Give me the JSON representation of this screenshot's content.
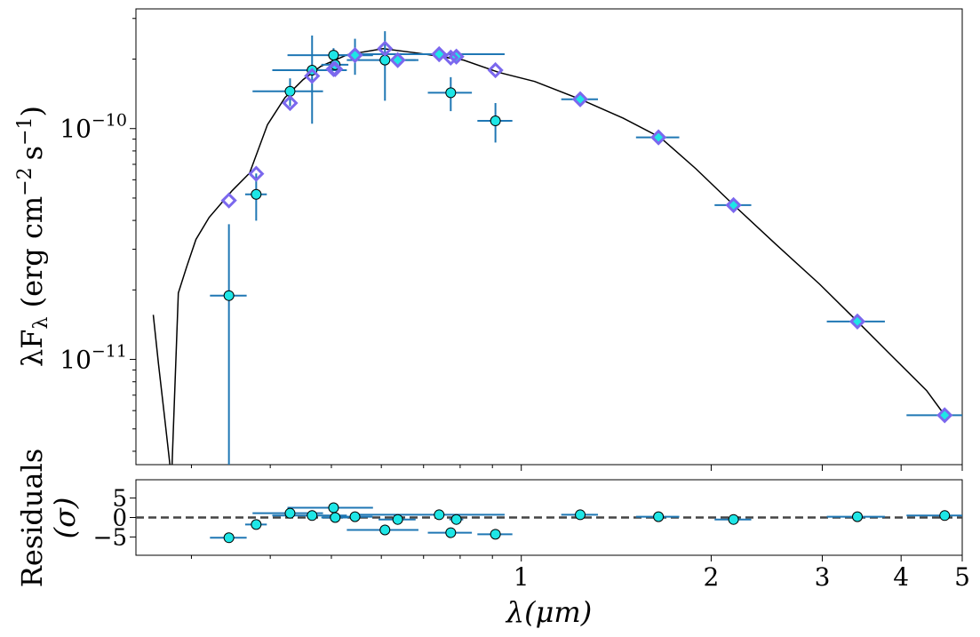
{
  "chart_data": [
    {
      "type": "sed",
      "ylabel": [
        "λF",
        "λ",
        " (erg cm",
        "−2",
        "s",
        "−1",
        ")"
      ],
      "xlim": [
        0.245,
        5
      ],
      "log_x": true,
      "ylim": [
        3.5e-12,
        3.3e-10
      ],
      "log_y": true,
      "yticks": [
        {
          "value": 1e-10,
          "base": "10",
          "exponent": "−10"
        },
        {
          "value": 1e-11,
          "base": "10",
          "exponent": "−11"
        }
      ],
      "yminorticks": [
        4e-12,
        5e-12,
        6e-12,
        7e-12,
        8e-12,
        9e-12,
        2e-11,
        3e-11,
        4e-11,
        5e-11,
        6e-11,
        7e-11,
        8e-11,
        9e-11,
        2e-10,
        3e-10
      ],
      "xminorticks": [
        0.3,
        0.4,
        0.5,
        0.6,
        0.7,
        0.8,
        0.9
      ],
      "xticks": [
        1,
        2,
        3,
        4,
        5
      ],
      "model_spectrum": {
        "color": "#000000",
        "x": [
          0.261,
          0.266,
          0.272,
          0.279,
          0.286,
          0.295,
          0.305,
          0.32,
          0.348,
          0.371,
          0.396,
          0.422,
          0.451,
          0.481,
          0.53,
          0.604,
          0.688,
          0.81,
          0.922,
          1.05,
          1.24,
          1.45,
          1.66,
          1.89,
          2.17,
          2.53,
          2.97,
          3.41,
          3.86,
          4.39,
          4.69
        ],
        "values": [
          1.56e-11,
          9.57e-12,
          5.62e-12,
          3.03e-12,
          1.94e-11,
          2.53e-11,
          3.31e-11,
          4.12e-11,
          5.38e-11,
          6.42e-11,
          1.04e-10,
          1.36e-10,
          1.63e-10,
          1.86e-10,
          2.09e-10,
          2.22e-10,
          2.12e-10,
          1.98e-10,
          1.75e-10,
          1.6e-10,
          1.34e-10,
          1.11e-10,
          9.16e-11,
          6.71e-11,
          4.67e-11,
          3.16e-11,
          2.12e-11,
          1.46e-11,
          1.04e-11,
          7.33e-12,
          5.73e-12
        ]
      },
      "observed": {
        "color": "#1ee6e6",
        "edgecolor": "#000000",
        "errorcolor": "#1f77b4",
        "x": [
          0.344,
          0.38,
          0.43,
          0.466,
          0.504,
          0.507,
          0.545,
          0.608,
          0.637,
          0.741,
          0.773,
          0.789,
          0.91,
          1.24,
          1.65,
          2.17,
          3.41,
          4.69
        ],
        "values": [
          1.89e-11,
          5.19e-11,
          1.45e-10,
          1.79e-10,
          2.08e-10,
          1.89e-10,
          2.08e-10,
          1.98e-10,
          1.98e-10,
          2.1e-10,
          1.43e-10,
          2.05e-10,
          1.08e-10,
          1.34e-10,
          9.16e-11,
          4.66e-11,
          1.46e-11,
          5.73e-12
        ],
        "xerr": [
          0.023,
          0.015,
          0.055,
          0.063,
          0.078,
          0.025,
          0.036,
          0.079,
          0.043,
          0.2,
          0.062,
          0.02,
          0.058,
          0.083,
          0.13,
          0.145,
          0.36,
          0.61
        ],
        "yerr": [
          1.96e-11,
          1.2e-11,
          2e-11,
          7.4e-11,
          1.5e-11,
          1e-11,
          3.7e-11,
          6.6e-11,
          1e-11,
          1.5e-11,
          2.4e-11,
          8e-12,
          2.1e-11,
          3e-12,
          2e-12,
          1e-12,
          3e-13,
          1e-13
        ]
      },
      "model_photometry": {
        "color": "#7b68ee",
        "values": [
          4.88e-11,
          6.37e-11,
          1.29e-10,
          1.69e-10,
          1.81e-10,
          1.81e-10,
          2.08e-10,
          2.22e-10,
          1.98e-10,
          2.1e-10,
          2.03e-10,
          2.05e-10,
          1.79e-10,
          1.34e-10,
          9.16e-11,
          4.66e-11,
          1.46e-11,
          5.73e-12
        ]
      }
    },
    {
      "type": "residuals",
      "ylabel": [
        "Residuals",
        "(σ)"
      ],
      "xlabel": "λ(μm)",
      "ylim": [
        -9.7,
        9.7
      ],
      "yticks": [
        {
          "value": -5,
          "label": "−5"
        },
        0,
        5
      ],
      "hline": 0,
      "hline_color": "#444444",
      "color": "#1ee6e6",
      "edgecolor": "#000000",
      "errorcolor": "#1f77b4",
      "values": [
        -5.2,
        -1.8,
        1.1,
        0.5,
        2.5,
        0,
        0.2,
        -3.2,
        -0.5,
        0.7,
        -3.9,
        -0.5,
        -4.3,
        0.7,
        0.2,
        -0.5,
        0.2,
        0.5
      ]
    }
  ]
}
